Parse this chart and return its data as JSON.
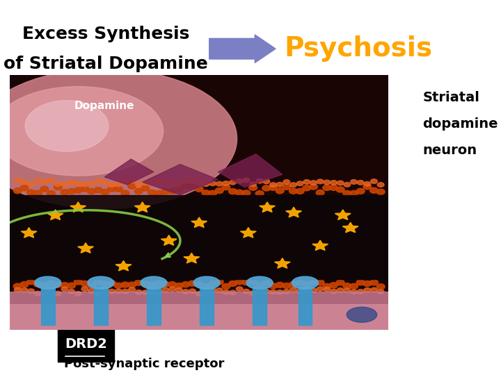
{
  "title_left_line1": "Excess Synthesis",
  "title_left_line2": "of Striatal Dopamine",
  "title_right": "Psychosis",
  "title_right_color": "#FFA500",
  "arrow_color": "#7B7FC4",
  "dopamine_label": "Dopamine",
  "drd2_label": "DRD2",
  "post_synaptic_label": "Post-synaptic receptor",
  "striatal_line1": "Striatal",
  "striatal_line2": "dopamine",
  "striatal_line3": "neuron",
  "bg_color": "#ffffff",
  "title_fontsize": 18,
  "psychosis_fontsize": 28,
  "striatal_fontsize": 14,
  "drd2_fontsize": 14,
  "post_syn_fontsize": 13
}
